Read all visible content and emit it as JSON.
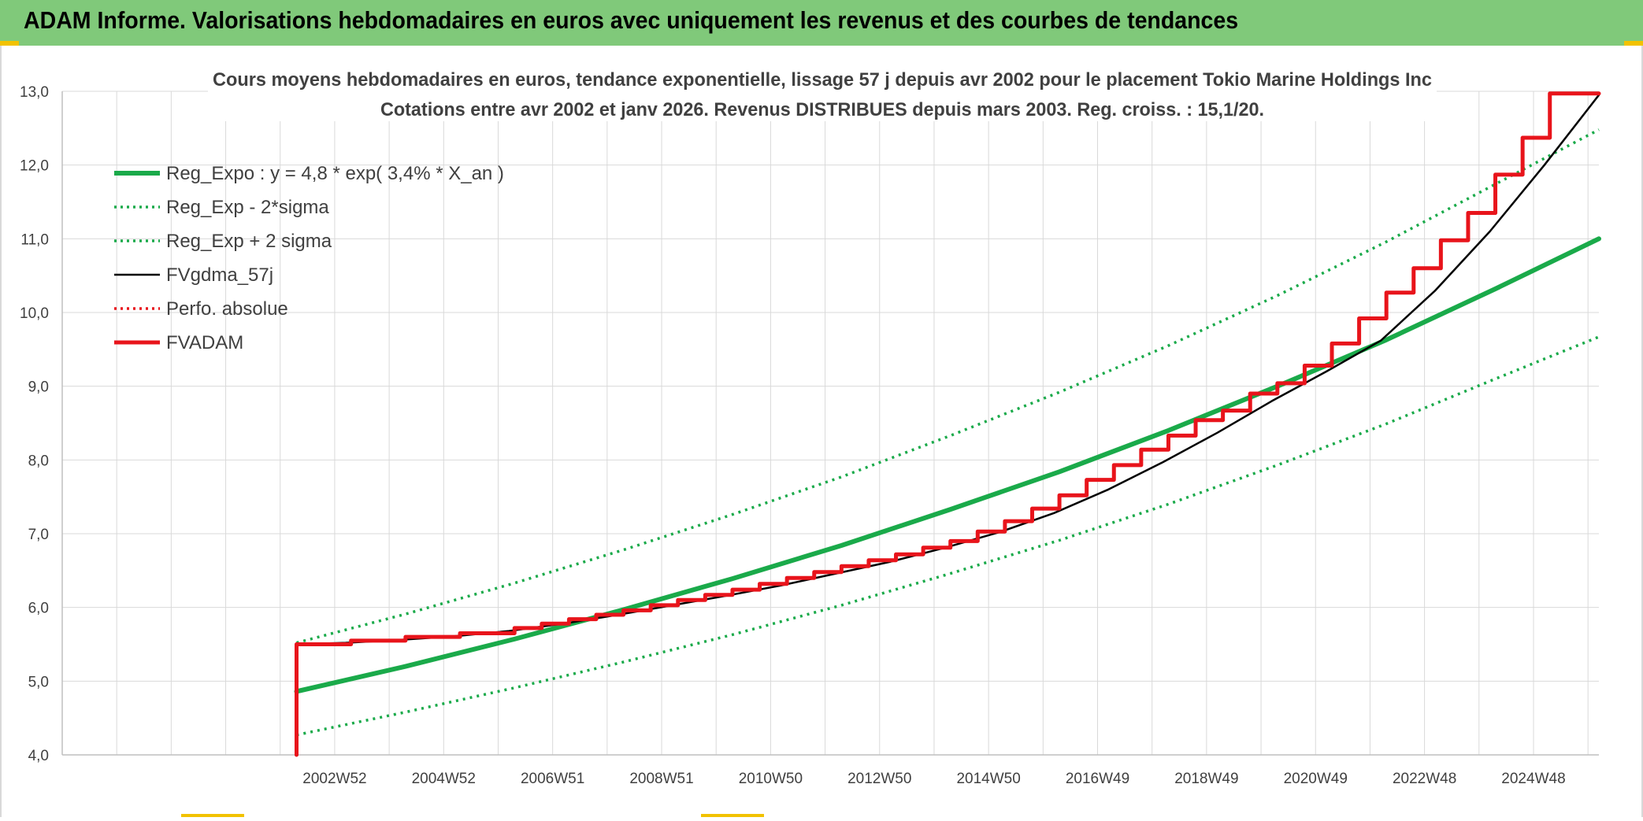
{
  "header": {
    "title": "ADAM Informe. Valorisations hebdomadaires en euros avec uniquement les revenus et des courbes de tendances"
  },
  "colors": {
    "header_bg": "#80c97a",
    "accent": "#f2c200",
    "green": "#1aaa4a",
    "black": "#000000",
    "red": "#e8141b",
    "grid": "#d9d9d9"
  },
  "chart_data": {
    "type": "line",
    "title": "Cours moyens hebdomadaires en euros, tendance exponentielle, lissage 57 j depuis avr 2002 pour le placement Tokio Marine Holdings Inc",
    "subtitle": "Cotations entre avr 2002 et janv 2026. Revenus DISTRIBUES depuis mars 2003. Reg. croiss. : 15,1/20.",
    "xlabel": "",
    "ylabel": "",
    "ylim": [
      4.0,
      13.0
    ],
    "yticks": [
      "4,0",
      "5,0",
      "6,0",
      "7,0",
      "8,0",
      "9,0",
      "10,0",
      "11,0",
      "12,0",
      "13,0"
    ],
    "xlim": [
      1998.0,
      2026.2
    ],
    "xticks": [
      {
        "label": "2002W52",
        "x": 2003.0
      },
      {
        "label": "2004W52",
        "x": 2005.0
      },
      {
        "label": "2006W51",
        "x": 2007.0
      },
      {
        "label": "2008W51",
        "x": 2009.0
      },
      {
        "label": "2010W50",
        "x": 2011.0
      },
      {
        "label": "2012W50",
        "x": 2013.0
      },
      {
        "label": "2014W50",
        "x": 2015.0
      },
      {
        "label": "2016W49",
        "x": 2017.0
      },
      {
        "label": "2018W49",
        "x": 2019.0
      },
      {
        "label": "2020W49",
        "x": 2021.0
      },
      {
        "label": "2022W48",
        "x": 2023.0
      },
      {
        "label": "2024W48",
        "x": 2025.0
      }
    ],
    "grid": true,
    "legend_position": "top-left",
    "series": [
      {
        "name": "Reg_Expo : y = 4,8 * exp( 3,4% *  X_an )",
        "style": "solid-thick",
        "color": "#1aaa4a",
        "x": [
          2002.3,
          2004.3,
          2006.3,
          2008.3,
          2010.3,
          2012.3,
          2014.3,
          2016.3,
          2018.3,
          2020.3,
          2022.3,
          2024.3,
          2026.2
        ],
        "y": [
          4.86,
          5.2,
          5.57,
          5.97,
          6.39,
          6.84,
          7.33,
          7.84,
          8.4,
          9.0,
          9.63,
          10.32,
          11.0
        ]
      },
      {
        "name": "Reg_Exp - 2*sigma",
        "style": "dotted",
        "color": "#1aaa4a",
        "x": [
          2002.3,
          2004.3,
          2006.3,
          2008.3,
          2010.3,
          2012.3,
          2014.3,
          2016.3,
          2018.3,
          2020.3,
          2022.3,
          2024.3,
          2026.2
        ],
        "y": [
          4.27,
          4.58,
          4.91,
          5.26,
          5.63,
          6.03,
          6.46,
          6.91,
          7.4,
          7.93,
          8.49,
          9.1,
          9.67
        ]
      },
      {
        "name": "Reg_Exp + 2 sigma",
        "style": "dotted",
        "color": "#1aaa4a",
        "x": [
          2002.3,
          2004.3,
          2006.3,
          2008.3,
          2010.3,
          2012.3,
          2014.3,
          2016.3,
          2018.3,
          2020.3,
          2022.3,
          2024.3,
          2026.2
        ],
        "y": [
          5.52,
          5.91,
          6.33,
          6.78,
          7.26,
          7.77,
          8.33,
          8.92,
          9.55,
          10.23,
          10.96,
          11.74,
          12.48
        ]
      },
      {
        "name": "FVgdma_57j",
        "style": "solid",
        "color": "#000000",
        "x": [
          2002.3,
          2003.2,
          2004.2,
          2005.2,
          2006.2,
          2007.2,
          2008.2,
          2009.2,
          2010.2,
          2011.2,
          2012.2,
          2013.2,
          2014.2,
          2015.2,
          2016.2,
          2017.2,
          2018.2,
          2019.2,
          2020.2,
          2021.2,
          2022.2,
          2023.2,
          2024.2,
          2025.2,
          2026.2
        ],
        "y": [
          5.5,
          5.52,
          5.56,
          5.61,
          5.68,
          5.78,
          5.9,
          6.03,
          6.16,
          6.3,
          6.46,
          6.62,
          6.81,
          7.02,
          7.28,
          7.6,
          7.97,
          8.37,
          8.8,
          9.2,
          9.62,
          10.3,
          11.1,
          12.0,
          12.95
        ]
      },
      {
        "name": "Perfo. absolue",
        "style": "dotted",
        "color": "#e8141b",
        "x": [],
        "y": []
      },
      {
        "name": "FVADAM",
        "style": "step-thick",
        "color": "#e8141b",
        "x": [
          2002.3,
          2002.3,
          2003.3,
          2004.3,
          2005.3,
          2006.3,
          2006.8,
          2007.3,
          2007.8,
          2008.3,
          2008.8,
          2009.3,
          2009.8,
          2010.3,
          2010.8,
          2011.3,
          2011.8,
          2012.3,
          2012.8,
          2013.3,
          2013.8,
          2014.3,
          2014.8,
          2015.3,
          2015.8,
          2016.3,
          2016.8,
          2017.3,
          2017.8,
          2018.3,
          2018.8,
          2019.3,
          2019.8,
          2020.3,
          2020.8,
          2021.3,
          2021.8,
          2022.3,
          2022.8,
          2023.3,
          2023.8,
          2024.3,
          2024.8,
          2025.3,
          2025.8,
          2026.2
        ],
        "y": [
          4.0,
          5.5,
          5.55,
          5.6,
          5.65,
          5.72,
          5.78,
          5.84,
          5.9,
          5.96,
          6.03,
          6.1,
          6.17,
          6.24,
          6.32,
          6.4,
          6.48,
          6.56,
          6.64,
          6.72,
          6.81,
          6.9,
          7.03,
          7.17,
          7.34,
          7.52,
          7.73,
          7.93,
          8.14,
          8.33,
          8.54,
          8.67,
          8.9,
          9.04,
          9.28,
          9.58,
          9.92,
          10.27,
          10.6,
          10.98,
          11.35,
          11.87,
          12.37,
          12.97,
          12.97,
          12.97
        ]
      }
    ]
  }
}
